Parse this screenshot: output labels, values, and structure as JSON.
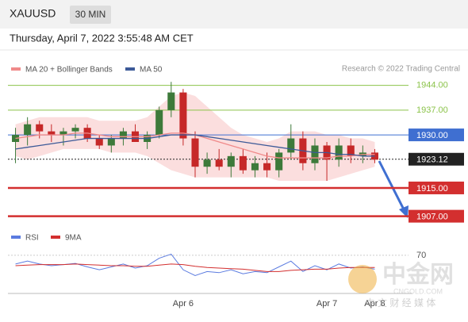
{
  "header": {
    "symbol": "XAUUSD",
    "interval": "30 MIN",
    "datetime": "Thursday, April 7, 2022 3:55:48 AM CET",
    "credit": "Research © 2022 Trading Central"
  },
  "watermark": {
    "brand": "中金网",
    "site": "CNGOLD.COM",
    "tagline": "中 文 财 经 媒 体"
  },
  "chart_data": [
    {
      "type": "candlestick",
      "ylim": [
        1904,
        1952
      ],
      "categories": [
        null,
        null,
        null,
        null,
        null,
        null,
        null,
        null,
        null,
        null,
        null,
        null,
        null,
        null,
        "Apr 6",
        null,
        null,
        null,
        null,
        null,
        null,
        null,
        null,
        null,
        null,
        null,
        "Apr 7",
        null,
        null,
        null,
        "Apr 8"
      ],
      "open": [
        1928,
        1930,
        1933,
        1931,
        1930,
        1931,
        1932,
        1929,
        1927,
        1929,
        1931,
        1928,
        1930,
        1937,
        1942,
        1929,
        1921,
        1923,
        1921,
        1924,
        1920,
        1922,
        1920,
        1925,
        1929,
        1922,
        1927,
        1923,
        1927,
        1924,
        1925
      ],
      "high": [
        1932,
        1935,
        1934,
        1933,
        1932,
        1933,
        1933,
        1930,
        1930,
        1932,
        1933,
        1931,
        1938,
        1945,
        1943,
        1931,
        1925,
        1926,
        1925,
        1926,
        1924,
        1925,
        1926,
        1933,
        1931,
        1929,
        1928,
        1929,
        1929,
        1927,
        1926
      ],
      "low": [
        1922,
        1927,
        1929,
        1928,
        1927,
        1929,
        1928,
        1926,
        1925,
        1927,
        1928,
        1926,
        1929,
        1935,
        1927,
        1918,
        1919,
        1920,
        1918,
        1919,
        1918,
        1918,
        1918,
        1923,
        1920,
        1920,
        1917,
        1921,
        1922,
        1922,
        1922
      ],
      "close": [
        1930,
        1933,
        1931,
        1930,
        1931,
        1932,
        1929,
        1927,
        1929,
        1931,
        1928,
        1930,
        1937,
        1942,
        1929,
        1921,
        1923,
        1921,
        1924,
        1920,
        1922,
        1920,
        1925,
        1929,
        1922,
        1927,
        1923,
        1927,
        1924,
        1925,
        1923
      ],
      "up_color": "#3d7a3a",
      "down_color": "#c62828",
      "series": [
        {
          "name": "MA 20 + Bollinger Bands",
          "color": "#f08a8a",
          "values": [
            1929,
            1929.5,
            1930,
            1930,
            1930,
            1930.5,
            1930.5,
            1930,
            1929.5,
            1929.5,
            1929.5,
            1929.5,
            1930,
            1930.5,
            1930.5,
            1930,
            1929,
            1928,
            1927,
            1926,
            1925,
            1924,
            1923.5,
            1923.5,
            1923.5,
            1923.5,
            1923.5,
            1924,
            1924,
            1924.5,
            1924.5
          ],
          "upper": [
            1933,
            1934,
            1935,
            1935,
            1935,
            1935,
            1935,
            1934,
            1934,
            1934,
            1934,
            1935,
            1938,
            1941,
            1942,
            1941,
            1938,
            1935,
            1932,
            1930,
            1929,
            1928,
            1929,
            1931,
            1931,
            1931,
            1930,
            1930,
            1929,
            1929,
            1928
          ],
          "lower": [
            1924,
            1923,
            1924,
            1925,
            1926,
            1926,
            1926,
            1926,
            1925,
            1925,
            1925,
            1924,
            1922,
            1920,
            1919,
            1918,
            1918,
            1918,
            1918,
            1918,
            1918,
            1918,
            1917,
            1917,
            1917,
            1917,
            1917,
            1918,
            1919,
            1920,
            1921
          ],
          "band_color": "#fbdede"
        },
        {
          "name": "MA 50",
          "color": "#3d5a98",
          "values": [
            1926,
            1926.5,
            1927,
            1927.5,
            1928,
            1928.5,
            1929,
            1929,
            1929,
            1929,
            1929,
            1929,
            1929.5,
            1930,
            1930,
            1930,
            1929.5,
            1929,
            1928.5,
            1928,
            1927.5,
            1927,
            1926.5,
            1926,
            1925.5,
            1925,
            1925,
            1924.5,
            1924.5,
            1924,
            1924
          ]
        }
      ],
      "levels": [
        {
          "value": 1944,
          "label": "1944.00",
          "color": "#8bc34a",
          "style": "thin"
        },
        {
          "value": 1937,
          "label": "1937.00",
          "color": "#8bc34a",
          "style": "thin"
        },
        {
          "value": 1930,
          "label": "1930.00",
          "color": "#3f6fd1",
          "style": "filled"
        },
        {
          "value": 1923.12,
          "label": "1923.12",
          "color": "#222222",
          "style": "dotted"
        },
        {
          "value": 1915,
          "label": "1915.00",
          "color": "#d32f2f",
          "style": "filled"
        },
        {
          "value": 1907,
          "label": "1907.00",
          "color": "#d32f2f",
          "style": "filled"
        }
      ]
    },
    {
      "type": "line",
      "ylim": [
        0,
        100
      ],
      "yticks": [
        70
      ],
      "series": [
        {
          "name": "RSI",
          "color": "#5b7be0",
          "values": [
            55,
            60,
            55,
            52,
            54,
            56,
            50,
            45,
            50,
            55,
            48,
            52,
            65,
            72,
            45,
            35,
            42,
            40,
            45,
            38,
            42,
            40,
            50,
            60,
            42,
            52,
            45,
            55,
            48,
            50,
            46
          ]
        },
        {
          "name": "9MA",
          "color": "#d32f2f",
          "values": [
            52,
            53,
            54,
            54,
            54,
            55,
            54,
            53,
            52,
            52,
            51,
            51,
            53,
            55,
            54,
            51,
            49,
            48,
            47,
            46,
            44,
            42,
            42,
            44,
            45,
            46,
            46,
            48,
            49,
            49,
            49
          ]
        }
      ]
    }
  ]
}
